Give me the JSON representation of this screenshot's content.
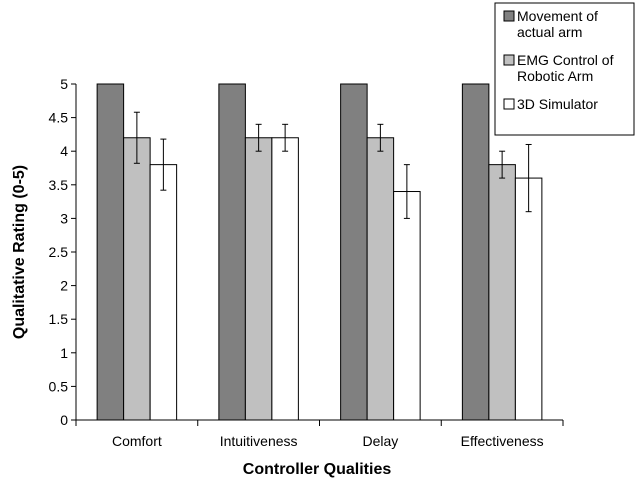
{
  "chart_data": {
    "type": "bar",
    "title": "",
    "xlabel": "Controller Qualities",
    "ylabel": "Qualitative Rating (0-5)",
    "ylim": [
      0,
      5
    ],
    "yticks": [
      "0",
      "0.5",
      "1",
      "1.5",
      "2",
      "2.5",
      "3",
      "3.5",
      "4",
      "4.5",
      "5"
    ],
    "categories": [
      "Comfort",
      "Intuitiveness",
      "Delay",
      "Effectiveness"
    ],
    "grid": false,
    "legend_position": "top-right",
    "series": [
      {
        "name": "Movement of actual arm",
        "color": "#808080",
        "values": [
          5,
          5,
          5,
          5
        ],
        "errors": [
          null,
          null,
          null,
          null
        ]
      },
      {
        "name": "EMG Control of Robotic Arm",
        "color": "#c0c0c0",
        "values": [
          4.2,
          4.2,
          4.2,
          3.8
        ],
        "errors": [
          0.38,
          0.2,
          0.2,
          0.2
        ]
      },
      {
        "name": "3D Simulator",
        "color": "#ffffff",
        "values": [
          3.8,
          4.2,
          3.4,
          3.6
        ],
        "errors": [
          0.38,
          0.2,
          0.4,
          0.5
        ]
      }
    ]
  }
}
